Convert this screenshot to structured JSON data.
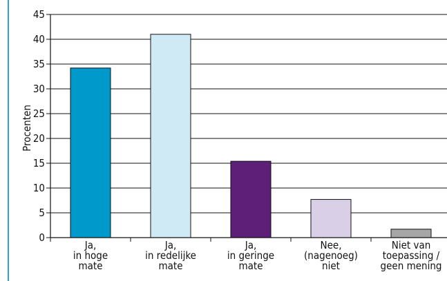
{
  "colors": {
    "frame": "#2aa3d6",
    "axis": "#111111",
    "grid": "#111111"
  },
  "chart_data": {
    "type": "bar",
    "ylabel": "Procenten",
    "xlabel": "",
    "ylim": [
      0,
      45
    ],
    "yticks": [
      "0",
      "5",
      "10",
      "15",
      "20",
      "25",
      "30",
      "35",
      "40",
      "45"
    ],
    "grid": true,
    "categories": [
      [
        "Ja,",
        "in hoge",
        "mate"
      ],
      [
        "Ja,",
        "in redelijke",
        "mate"
      ],
      [
        "Ja,",
        "in geringe",
        "mate"
      ],
      [
        "Nee,",
        "(nagenoeg)",
        "niet"
      ],
      [
        "Niet van",
        "toepassing /",
        "geen mening"
      ]
    ],
    "values": [
      34.2,
      41.0,
      15.4,
      7.7,
      1.7
    ],
    "bar_colors": [
      "#0099cc",
      "#cfe9f5",
      "#5e1f78",
      "#d9cfe6",
      "#a6a6a6"
    ]
  }
}
